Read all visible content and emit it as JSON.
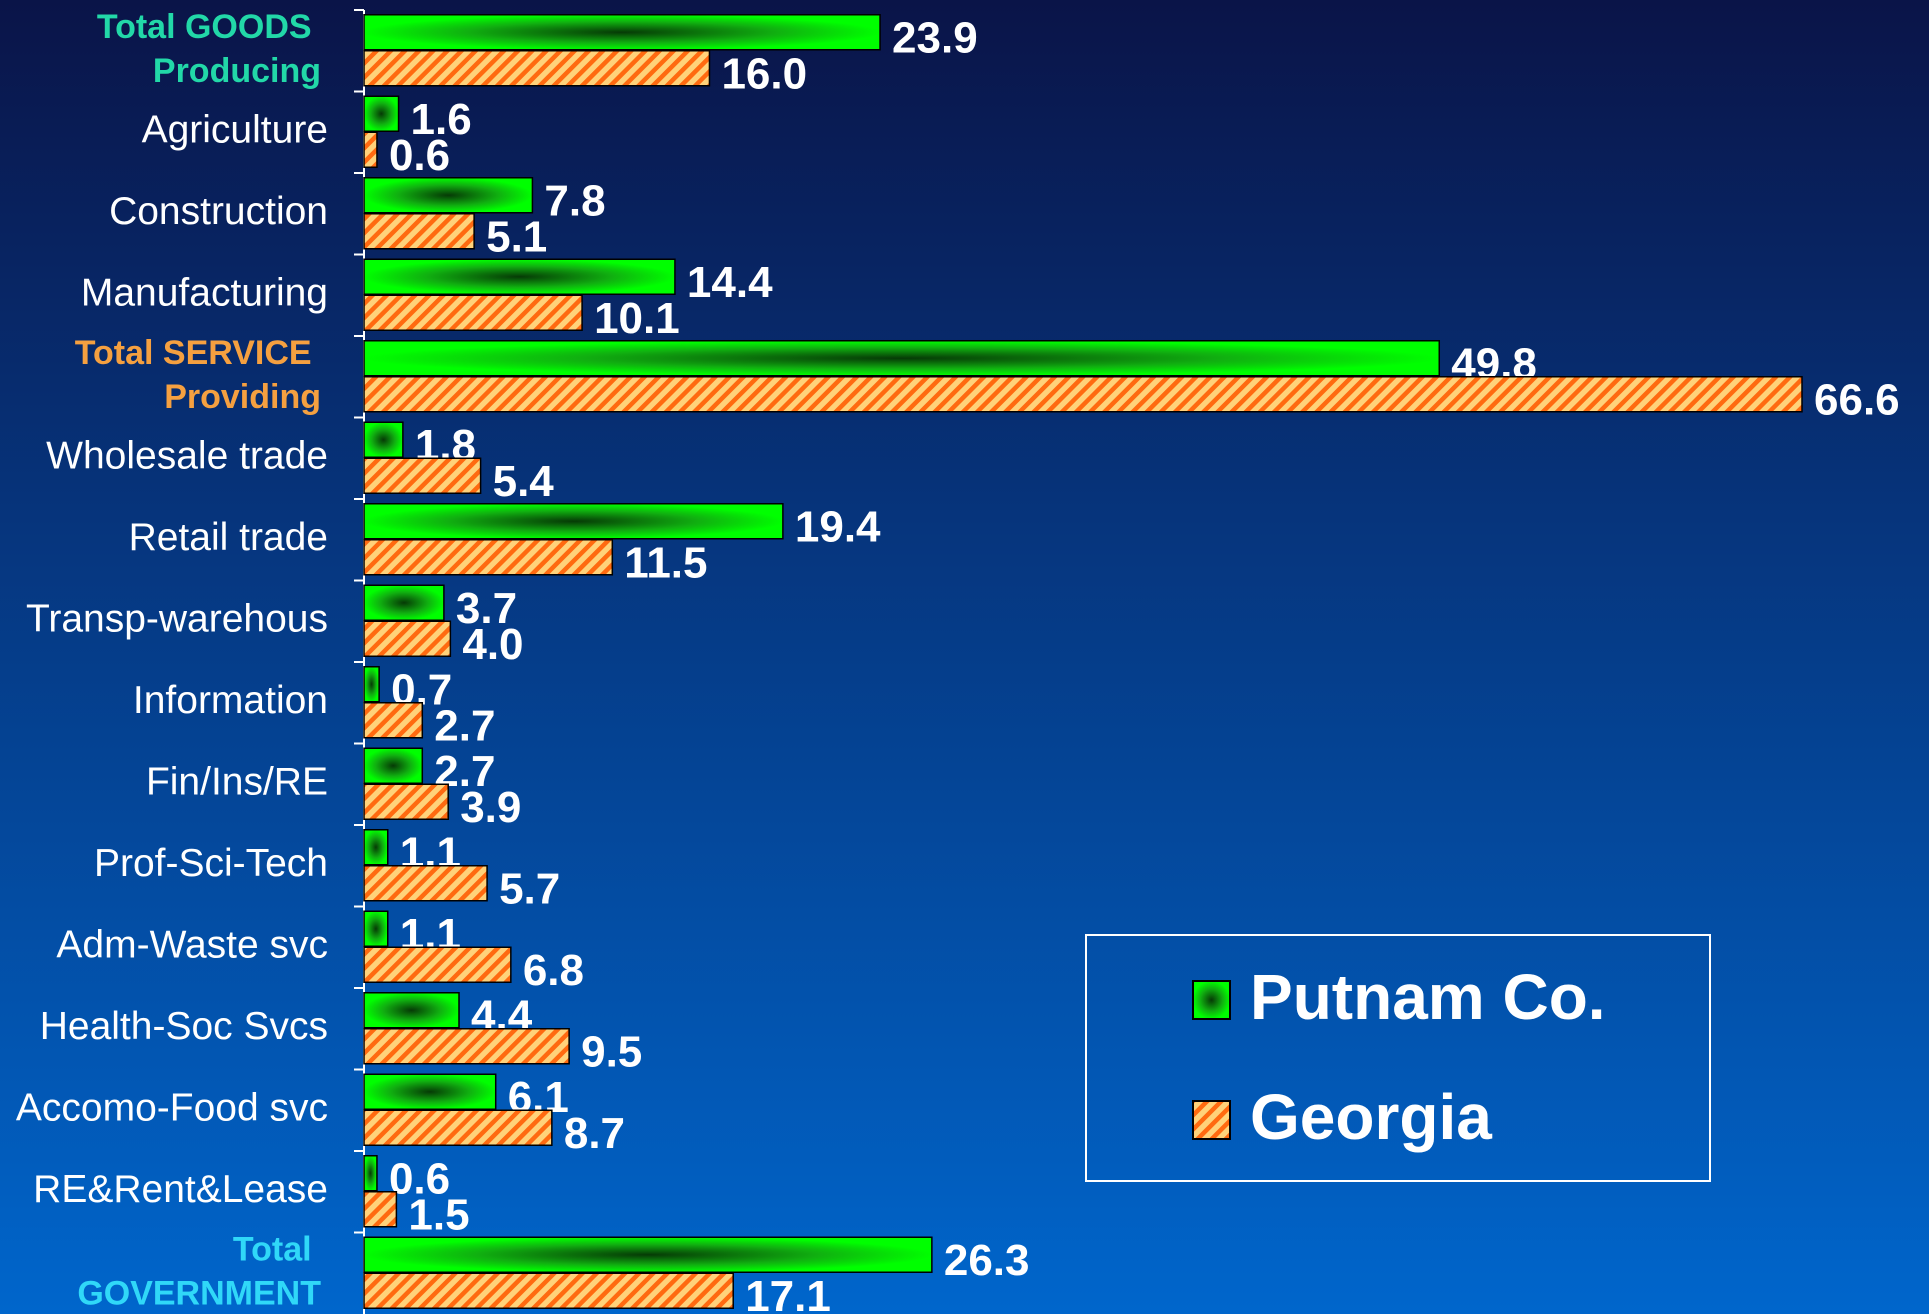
{
  "chart_data": {
    "type": "bar",
    "orientation": "horizontal",
    "categories": [
      "Total GOODS Producing",
      "Agriculture",
      "Construction",
      "Manufacturing",
      "Total SERVICE Providing",
      "Wholesale trade",
      "Retail trade",
      "Transp-warehous",
      "Information",
      "Fin/Ins/RE",
      "Prof-Sci-Tech",
      "Adm-Waste svc",
      "Health-Soc Svcs",
      "Accomo-Food svc",
      "RE&Rent&Lease",
      "Total GOVERNMENT"
    ],
    "category_colors": [
      "#22d8a8",
      "#ffffff",
      "#ffffff",
      "#ffffff",
      "#f5a040",
      "#ffffff",
      "#ffffff",
      "#ffffff",
      "#ffffff",
      "#ffffff",
      "#ffffff",
      "#ffffff",
      "#ffffff",
      "#ffffff",
      "#ffffff",
      "#30d8f8"
    ],
    "series": [
      {
        "name": "Putnam Co.",
        "color": "#00ee00",
        "values": [
          23.9,
          1.6,
          7.8,
          14.4,
          49.8,
          1.8,
          19.4,
          3.7,
          0.7,
          2.7,
          1.1,
          1.1,
          4.4,
          6.1,
          0.6,
          26.3
        ]
      },
      {
        "name": "Georgia",
        "color": "#ff7a10",
        "values": [
          16.0,
          0.6,
          5.1,
          10.1,
          66.6,
          5.4,
          11.5,
          4.0,
          2.7,
          3.9,
          5.7,
          6.8,
          9.5,
          8.7,
          1.5,
          17.1
        ],
        "value_labels": [
          "16.0",
          "0.6",
          "5.1",
          "10.1",
          "66.6",
          "5.4",
          "11.5",
          "4.0",
          "2.7",
          "3.9",
          "5.7",
          "6.8",
          "9.5",
          "8.7",
          "1.5",
          "17.1"
        ]
      }
    ],
    "legend": "bottom-right"
  }
}
